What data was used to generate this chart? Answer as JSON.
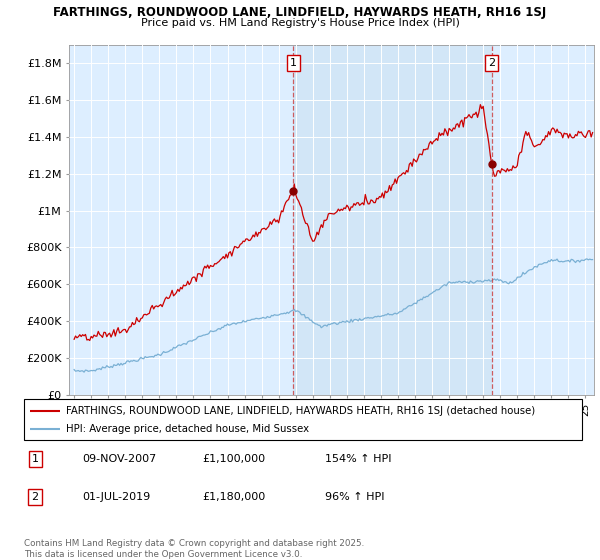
{
  "title_line1": "FARTHINGS, ROUNDWOOD LANE, LINDFIELD, HAYWARDS HEATH, RH16 1SJ",
  "title_line2": "Price paid vs. HM Land Registry's House Price Index (HPI)",
  "ylabel_ticks": [
    "£0",
    "£200K",
    "£400K",
    "£600K",
    "£800K",
    "£1M",
    "£1.2M",
    "£1.4M",
    "£1.6M",
    "£1.8M"
  ],
  "ytick_values": [
    0,
    200000,
    400000,
    600000,
    800000,
    1000000,
    1200000,
    1400000,
    1600000,
    1800000
  ],
  "ylim": [
    0,
    1900000
  ],
  "xlim_start": 1994.7,
  "xlim_end": 2025.5,
  "line1_color": "#cc0000",
  "line2_color": "#7ab0d4",
  "marker1_date": 2007.86,
  "marker2_date": 2019.5,
  "marker1_label": "1",
  "marker2_label": "2",
  "legend_line1": "FARTHINGS, ROUNDWOOD LANE, LINDFIELD, HAYWARDS HEATH, RH16 1SJ (detached house)",
  "legend_line2": "HPI: Average price, detached house, Mid Sussex",
  "note1_box_label": "1",
  "note1_date": "09-NOV-2007",
  "note1_price": "£1,100,000",
  "note1_hpi": "154% ↑ HPI",
  "note2_box_label": "2",
  "note2_date": "01-JUL-2019",
  "note2_price": "£1,180,000",
  "note2_hpi": "96% ↑ HPI",
  "footer": "Contains HM Land Registry data © Crown copyright and database right 2025.\nThis data is licensed under the Open Government Licence v3.0.",
  "plot_bg_color": "#ddeeff",
  "shade_color": "#cce0f0",
  "grid_color": "#ffffff",
  "shade_between": true
}
